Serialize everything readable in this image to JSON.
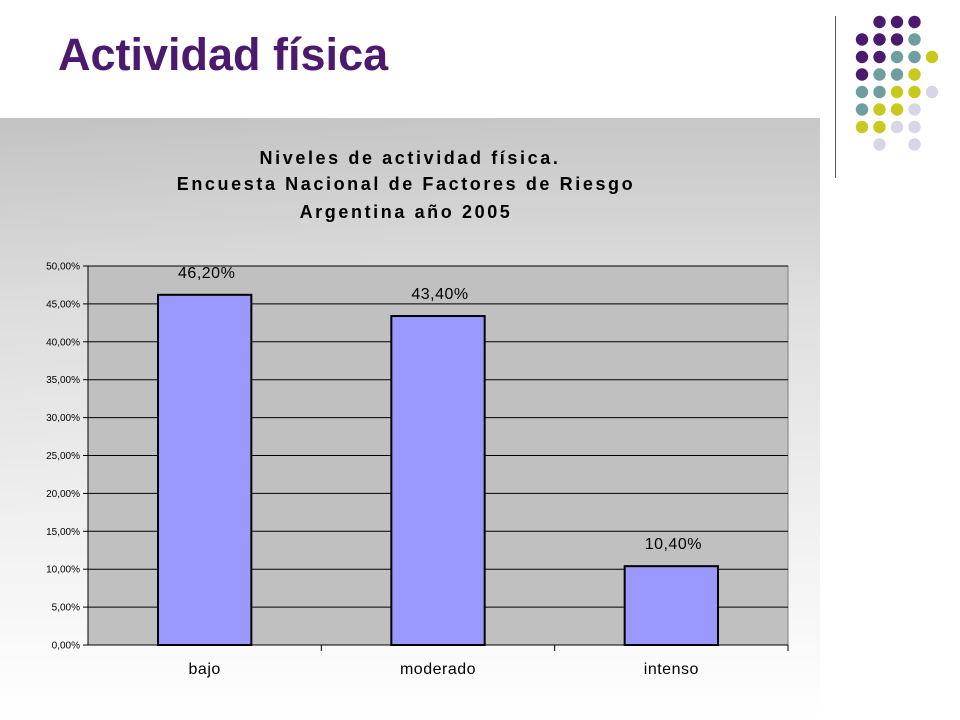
{
  "slide": {
    "title": "Actividad física"
  },
  "colors": {
    "title": "#4b1a6e",
    "bar_fill": "#9999ff",
    "plot_bg": "#c0c0c0",
    "dot_purple": "#4b1a6e",
    "dot_teal": "#6e9e9e",
    "dot_yellow": "#c8c81e",
    "dot_lavender": "#d6d6e8"
  },
  "chart_data": {
    "type": "bar",
    "title_lines": [
      "Niveles de actividad física.",
      "Encuesta Nacional de Factores de Riesgo",
      "Argentina año 2005"
    ],
    "categories": [
      "bajo",
      "moderado",
      "intenso"
    ],
    "values": [
      46.2,
      43.4,
      10.4
    ],
    "data_labels": [
      "46,20%",
      "43,40%",
      "10,40%"
    ],
    "ylim": [
      0,
      50
    ],
    "y_ticks": [
      0,
      5,
      10,
      15,
      20,
      25,
      30,
      35,
      40,
      45,
      50
    ],
    "y_tick_labels": [
      "0,00%",
      "5,00%",
      "10,00%",
      "15,00%",
      "20,00%",
      "25,00%",
      "30,00%",
      "35,00%",
      "40,00%",
      "45,00%",
      "50,00%"
    ],
    "grid": true,
    "legend": "none",
    "xlabel": "",
    "ylabel": ""
  }
}
